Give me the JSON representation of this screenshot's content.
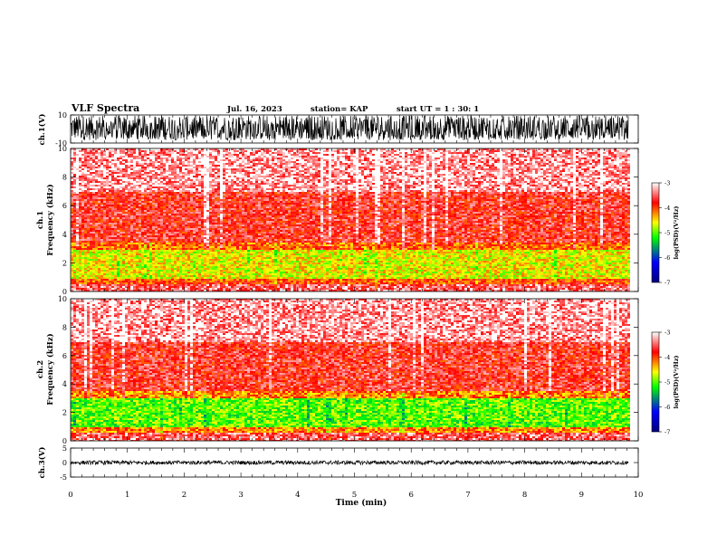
{
  "header": {
    "title": "VLF Spectra",
    "date": "Jul. 16, 2023",
    "station": "station= KAP",
    "start": "start UT =  1 : 30: 1"
  },
  "colors": {
    "waveform": "#000000",
    "spectrogram_background": "#ffffff",
    "colorbar_stops": [
      "#000080",
      "#0000ff",
      "#00ff00",
      "#ffff00",
      "#ff0000",
      "#ffffff"
    ]
  },
  "chart_data": [
    {
      "type": "line",
      "panel": "ch1-waveform",
      "ylabel": "ch.1(V)",
      "ylim": [
        -10,
        10
      ],
      "yticks": [
        "10",
        "-10"
      ],
      "description_of_values": "dense noisy waveform, roughly -8 to +10 V",
      "envelope": {
        "low": -8,
        "high": 10
      }
    },
    {
      "type": "heatmap",
      "panel": "ch1-spectrogram",
      "ylabel": "ch.1\nFrequency (kHz)",
      "ylabel_lines": [
        "ch.1",
        "Frequency (kHz)"
      ],
      "ylim": [
        0,
        10
      ],
      "yticks": [
        "0",
        "2",
        "4",
        "6",
        "8",
        "10"
      ],
      "bands": [
        {
          "from": 0.0,
          "to": 0.6,
          "level": -3.5
        },
        {
          "from": 0.6,
          "to": 1.0,
          "level": -4.0
        },
        {
          "from": 1.0,
          "to": 3.0,
          "level": -4.6
        },
        {
          "from": 3.0,
          "to": 3.5,
          "level": -4.1
        },
        {
          "from": 3.5,
          "to": 7.0,
          "level": -3.7
        },
        {
          "from": 7.0,
          "to": 10.0,
          "level": -3.3
        }
      ],
      "colorbar": {
        "label": "log(PSD)(V²/Hz)",
        "range": [
          -7,
          -3
        ],
        "ticks": [
          "-3",
          "-4",
          "-5",
          "-6",
          "-7"
        ]
      }
    },
    {
      "type": "heatmap",
      "panel": "ch2-spectrogram",
      "ylabel": "ch.2\nFrequency (kHz)",
      "ylabel_lines": [
        "ch.2",
        "Frequency (kHz)"
      ],
      "ylim": [
        0,
        10
      ],
      "yticks": [
        "0",
        "2",
        "4",
        "6",
        "8",
        "10"
      ],
      "bands": [
        {
          "from": 0.0,
          "to": 0.6,
          "level": -3.5
        },
        {
          "from": 0.6,
          "to": 1.0,
          "level": -4.2
        },
        {
          "from": 1.0,
          "to": 3.0,
          "level": -5.0
        },
        {
          "from": 3.0,
          "to": 3.6,
          "level": -4.2
        },
        {
          "from": 3.6,
          "to": 7.0,
          "level": -3.7
        },
        {
          "from": 7.0,
          "to": 10.0,
          "level": -3.3
        }
      ],
      "colorbar": {
        "label": "log(PSD)(V²/Hz)",
        "range": [
          -7,
          -3
        ],
        "ticks": [
          "-3",
          "-4",
          "-5",
          "-6",
          "-7"
        ]
      }
    },
    {
      "type": "line",
      "panel": "ch3-waveform",
      "ylabel": "ch.3(V)",
      "ylim": [
        -5,
        5
      ],
      "yticks": [
        "5",
        "0",
        "-5"
      ],
      "envelope": {
        "low": -0.7,
        "high": 0.7
      }
    }
  ],
  "xaxis": {
    "label": "Time (min)",
    "range": [
      0,
      10
    ],
    "ticks": [
      "0",
      "1",
      "2",
      "3",
      "4",
      "5",
      "6",
      "7",
      "8",
      "9",
      "10"
    ],
    "data_end": 9.83
  }
}
